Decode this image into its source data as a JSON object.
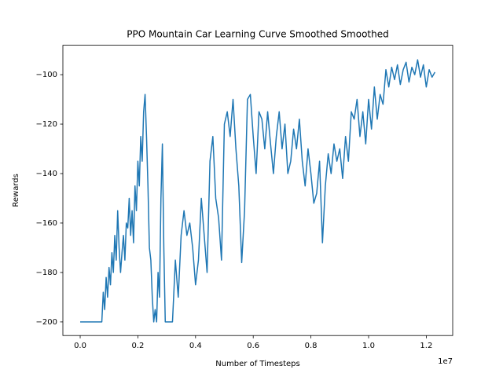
{
  "chart_data": {
    "type": "line",
    "title": "PPO Mountain Car Learning Curve Smoothed Smoothed",
    "x_label": "Number of Timesteps",
    "y_label": "Rewards",
    "x_offset_label": "1e7",
    "color": "#1f77b4",
    "x": [
      0,
      250000,
      500000,
      750000,
      800000,
      850000,
      900000,
      950000,
      1000000,
      1050000,
      1100000,
      1150000,
      1200000,
      1250000,
      1300000,
      1350000,
      1400000,
      1450000,
      1500000,
      1550000,
      1600000,
      1650000,
      1700000,
      1750000,
      1800000,
      1850000,
      1900000,
      1950000,
      2000000,
      2050000,
      2100000,
      2150000,
      2200000,
      2250000,
      2300000,
      2350000,
      2400000,
      2450000,
      2500000,
      2550000,
      2600000,
      2650000,
      2700000,
      2750000,
      2800000,
      2850000,
      2900000,
      2950000,
      3000000,
      3100000,
      3200000,
      3300000,
      3400000,
      3500000,
      3600000,
      3700000,
      3800000,
      3900000,
      4000000,
      4100000,
      4200000,
      4300000,
      4400000,
      4500000,
      4600000,
      4700000,
      4800000,
      4900000,
      5000000,
      5100000,
      5200000,
      5300000,
      5400000,
      5500000,
      5600000,
      5700000,
      5800000,
      5900000,
      6000000,
      6100000,
      6200000,
      6300000,
      6400000,
      6500000,
      6600000,
      6700000,
      6800000,
      6900000,
      7000000,
      7100000,
      7200000,
      7300000,
      7400000,
      7500000,
      7600000,
      7700000,
      7800000,
      7900000,
      8000000,
      8100000,
      8200000,
      8300000,
      8400000,
      8500000,
      8600000,
      8700000,
      8800000,
      8900000,
      9000000,
      9100000,
      9200000,
      9300000,
      9400000,
      9500000,
      9600000,
      9700000,
      9800000,
      9900000,
      10000000,
      10100000,
      10200000,
      10300000,
      10400000,
      10500000,
      10600000,
      10700000,
      10800000,
      10900000,
      11000000,
      11100000,
      11200000,
      11300000,
      11400000,
      11500000,
      11600000,
      11700000,
      11800000,
      11900000,
      12000000,
      12100000,
      12200000,
      12300000
    ],
    "values": [
      -200,
      -200,
      -200,
      -200,
      -188,
      -195,
      -182,
      -190,
      -178,
      -185,
      -172,
      -180,
      -165,
      -175,
      -155,
      -170,
      -180,
      -172,
      -165,
      -175,
      -160,
      -162,
      -150,
      -165,
      -155,
      -168,
      -145,
      -155,
      -135,
      -145,
      -125,
      -135,
      -115,
      -108,
      -125,
      -145,
      -170,
      -175,
      -190,
      -200,
      -195,
      -200,
      -180,
      -190,
      -150,
      -128,
      -170,
      -200,
      -200,
      -200,
      -200,
      -175,
      -190,
      -165,
      -155,
      -165,
      -160,
      -170,
      -185,
      -175,
      -150,
      -165,
      -180,
      -135,
      -125,
      -150,
      -158,
      -175,
      -120,
      -115,
      -125,
      -110,
      -130,
      -145,
      -176,
      -155,
      -110,
      -108,
      -125,
      -140,
      -115,
      -118,
      -130,
      -115,
      -128,
      -140,
      -125,
      -115,
      -130,
      -120,
      -140,
      -135,
      -122,
      -130,
      -118,
      -135,
      -145,
      -130,
      -140,
      -152,
      -148,
      -135,
      -168,
      -145,
      -132,
      -140,
      -128,
      -135,
      -130,
      -142,
      -125,
      -135,
      -115,
      -118,
      -110,
      -125,
      -115,
      -128,
      -110,
      -122,
      -105,
      -118,
      -108,
      -112,
      -98,
      -105,
      -97,
      -102,
      -96,
      -104,
      -98,
      -95,
      -103,
      -97,
      -100,
      -94,
      -101,
      -96,
      -105,
      -98,
      -101,
      -99
    ],
    "xlim": [
      -600000,
      12916000
    ],
    "ylim": [
      -205.5,
      -88.1
    ],
    "xticks": [
      {
        "value": 0,
        "label": "0.0"
      },
      {
        "value": 2000000,
        "label": "0.2"
      },
      {
        "value": 4000000,
        "label": "0.4"
      },
      {
        "value": 6000000,
        "label": "0.6"
      },
      {
        "value": 8000000,
        "label": "0.8"
      },
      {
        "value": 10000000,
        "label": "1.0"
      },
      {
        "value": 12000000,
        "label": "1.2"
      }
    ],
    "yticks": [
      {
        "value": -200,
        "label": "−200"
      },
      {
        "value": -180,
        "label": "−180"
      },
      {
        "value": -160,
        "label": "−160"
      },
      {
        "value": -140,
        "label": "−140"
      },
      {
        "value": -120,
        "label": "−120"
      },
      {
        "value": -100,
        "label": "−100"
      }
    ]
  }
}
